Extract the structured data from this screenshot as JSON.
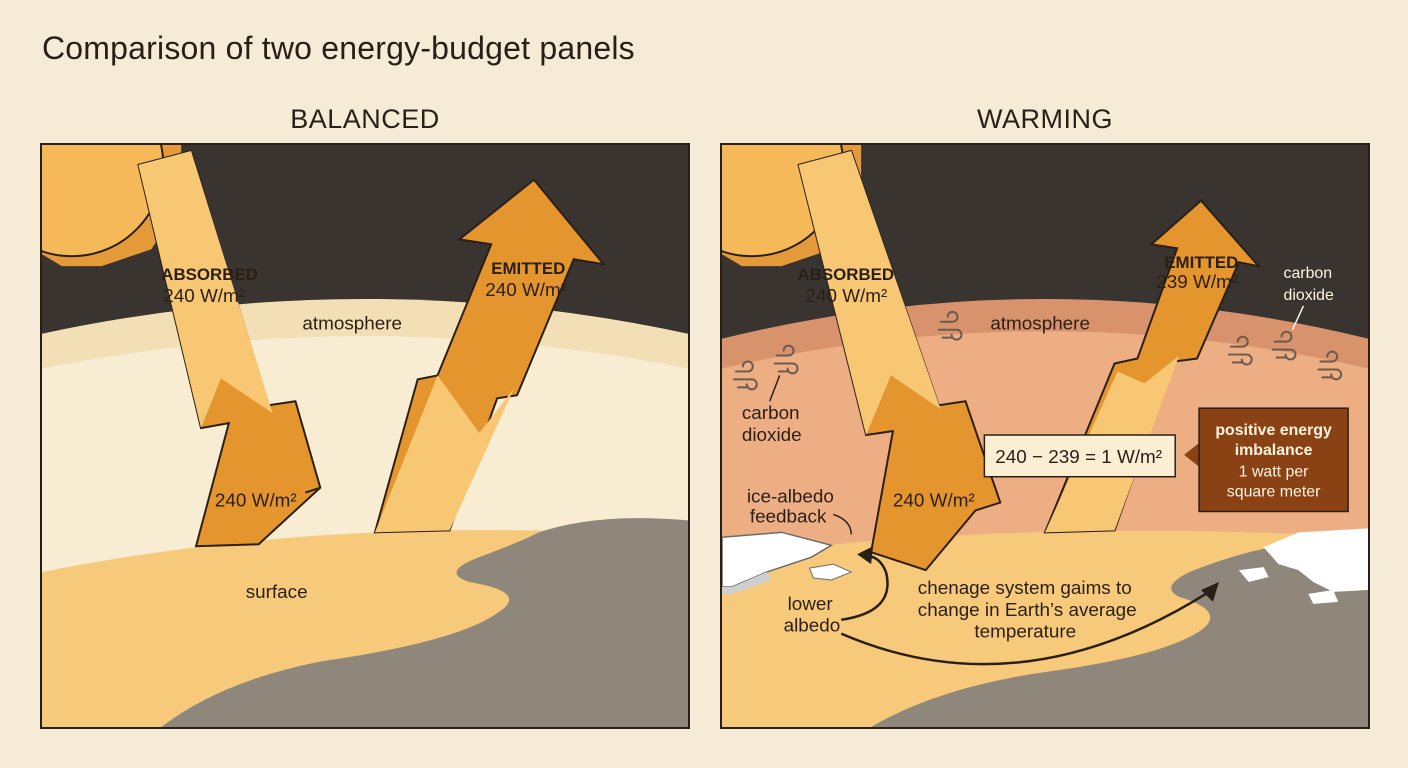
{
  "title": "Comparison of two energy-budget panels",
  "balanced": {
    "panel_title": "BALANCED",
    "absorbed_label": "ABSORBED",
    "absorbed_value": "240 W/m²",
    "emitted_label": "EMITTED",
    "emitted_value": "240 W/m²",
    "surface_value": "240 W/m²",
    "atmosphere_label": "atmosphere",
    "surface_label": "surface"
  },
  "warming": {
    "panel_title": "WARMING",
    "absorbed_label": "ABSORBED",
    "absorbed_value": "240 W/m²",
    "emitted_label": "EMITTED",
    "emitted_value": "239 W/m²",
    "surface_value": "240 W/m²",
    "atmosphere_label": "atmosphere",
    "co2_right_line1": "carbon",
    "co2_right_line2": "dioxide",
    "co2_left_line1": "carbon",
    "co2_left_line2": "dioxide",
    "equation": "240 − 239 = 1 W/m²",
    "imbalance_line1": "positive energy",
    "imbalance_line2": "imbalance",
    "imbalance_line3": "1 watt per",
    "imbalance_line4": "square meter",
    "ice_albedo_line1": "ice-albedo",
    "ice_albedo_line2": "feedback",
    "lower_albedo_line1": "lower",
    "lower_albedo_line2": "albedo",
    "change_line1": "chenage system gaims to",
    "change_line2": "change in Earth’s average",
    "change_line3": "temperature"
  },
  "colors": {
    "space": "#3a3431",
    "sun": "#f5b95a",
    "arrow_dark": "#e5952e",
    "arrow_light": "#f7c774",
    "surface": "#f7c97a",
    "land": "#8f877b",
    "atmosphere_balanced": "#f7e7c6",
    "atmosphere_warming": "#eeae84",
    "imbalance_box": "#8a4114"
  }
}
